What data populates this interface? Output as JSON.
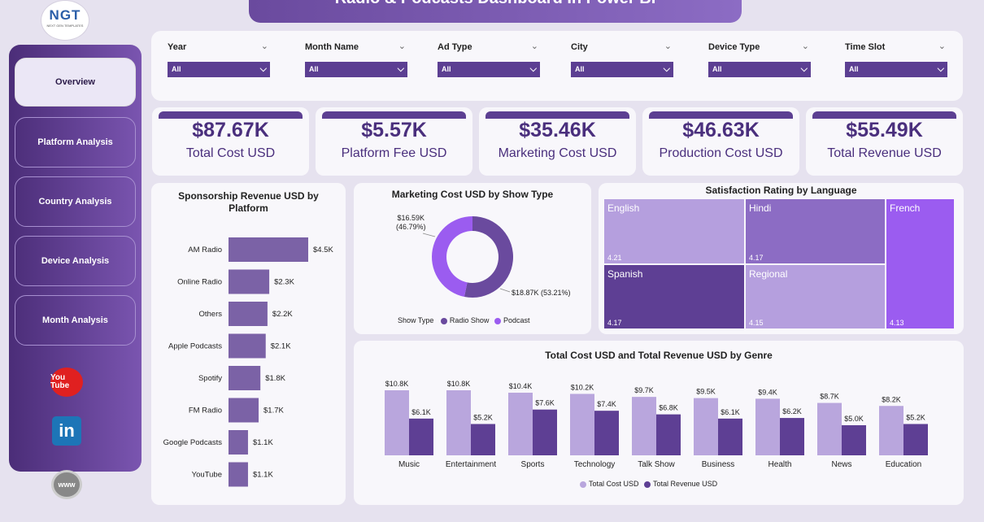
{
  "title": "Radio & Podcasts Dashboard In Power BI",
  "logo": {
    "text": "NGT",
    "sub": "NEXT GEN TEMPLATES"
  },
  "nav": [
    {
      "label": "Overview",
      "active": true
    },
    {
      "label": "Platform Analysis",
      "active": false
    },
    {
      "label": "Country Analysis",
      "active": false
    },
    {
      "label": "Device Analysis",
      "active": false
    },
    {
      "label": "Month Analysis",
      "active": false
    }
  ],
  "social": {
    "youtube": "You Tube",
    "linkedin": "in",
    "web": "www"
  },
  "filters": [
    {
      "label": "Year",
      "value": "All"
    },
    {
      "label": "Month Name",
      "value": "All"
    },
    {
      "label": "Ad Type",
      "value": "All"
    },
    {
      "label": "City",
      "value": "All"
    },
    {
      "label": "Device Type",
      "value": "All"
    },
    {
      "label": "Time Slot",
      "value": "All"
    }
  ],
  "kpis": [
    {
      "value": "$87.67K",
      "label": "Total Cost USD"
    },
    {
      "value": "$5.57K",
      "label": "Platform Fee USD"
    },
    {
      "value": "$35.46K",
      "label": "Marketing Cost USD"
    },
    {
      "value": "$46.63K",
      "label": "Production Cost USD"
    },
    {
      "value": "$55.49K",
      "label": "Total Revenue USD"
    }
  ],
  "sponsorship": {
    "title": "Sponsorship Revenue USD by Platform",
    "color": "#7b62a6"
  },
  "marketing": {
    "title": "Marketing Cost USD by Show Type",
    "legend_title": "Show Type",
    "label_podcast": "$16.59K",
    "label_podcast_pct": "(46.79%)",
    "label_radio": "$18.87K (53.21%)"
  },
  "satisfaction": {
    "title": "Satisfaction Rating by Language",
    "cells": [
      {
        "name": "English",
        "value": "4.21"
      },
      {
        "name": "Hindi",
        "value": "4.17"
      },
      {
        "name": "French",
        "value": ""
      },
      {
        "name": "Spanish",
        "value": "4.17"
      },
      {
        "name": "Regional",
        "value": "4.15"
      },
      {
        "name": "",
        "value": "4.13"
      }
    ]
  },
  "genre": {
    "title": "Total Cost USD and Total Revenue USD by Genre"
  },
  "chart_data": [
    {
      "type": "bar",
      "title": "Sponsorship Revenue USD by Platform",
      "orientation": "horizontal",
      "categories": [
        "AM Radio",
        "Online Radio",
        "Others",
        "Apple Podcasts",
        "Spotify",
        "FM Radio",
        "Google Podcasts",
        "YouTube"
      ],
      "values": [
        4.5,
        2.3,
        2.2,
        2.1,
        1.8,
        1.7,
        1.1,
        1.1
      ],
      "labels": [
        "$4.5K",
        "$2.3K",
        "$2.2K",
        "$2.1K",
        "$1.8K",
        "$1.7K",
        "$1.1K",
        "$1.1K"
      ],
      "xlim": [
        0,
        4.5
      ]
    },
    {
      "type": "pie",
      "title": "Marketing Cost USD by Show Type",
      "donut": true,
      "categories": [
        "Radio Show",
        "Podcast"
      ],
      "values": [
        18.87,
        16.59
      ],
      "percents": [
        53.21,
        46.79
      ],
      "colors": [
        "#6a4a9e",
        "#9b5cf0"
      ],
      "legend": "bottom"
    },
    {
      "type": "heatmap",
      "title": "Satisfaction Rating by Language",
      "categories": [
        "English",
        "Hindi",
        "French",
        "Spanish",
        "Regional"
      ],
      "values": [
        4.21,
        4.17,
        4.13,
        4.17,
        4.15
      ]
    },
    {
      "type": "bar",
      "title": "Total Cost USD and Total Revenue USD by Genre",
      "categories": [
        "Music",
        "Entertainment",
        "Sports",
        "Technology",
        "Talk Show",
        "Business",
        "Health",
        "News",
        "Education"
      ],
      "series": [
        {
          "name": "Total Cost USD",
          "values": [
            10.8,
            10.8,
            10.4,
            10.2,
            9.7,
            9.5,
            9.4,
            8.7,
            8.2
          ],
          "labels": [
            "$10.8K",
            "$10.8K",
            "$10.4K",
            "$10.2K",
            "$9.7K",
            "$9.5K",
            "$9.4K",
            "$8.7K",
            "$8.2K"
          ],
          "color": "#b9a6dd"
        },
        {
          "name": "Total Revenue USD",
          "values": [
            6.1,
            5.2,
            7.6,
            7.4,
            6.8,
            6.1,
            6.2,
            5.0,
            5.2
          ],
          "labels": [
            "$6.1K",
            "$5.2K",
            "$7.6K",
            "$7.4K",
            "$6.8K",
            "$6.1K",
            "$6.2K",
            "$5.0K",
            "$5.2K"
          ],
          "color": "#5e3f94"
        }
      ],
      "ylim": [
        0,
        10.8
      ],
      "legend": "bottom"
    }
  ]
}
